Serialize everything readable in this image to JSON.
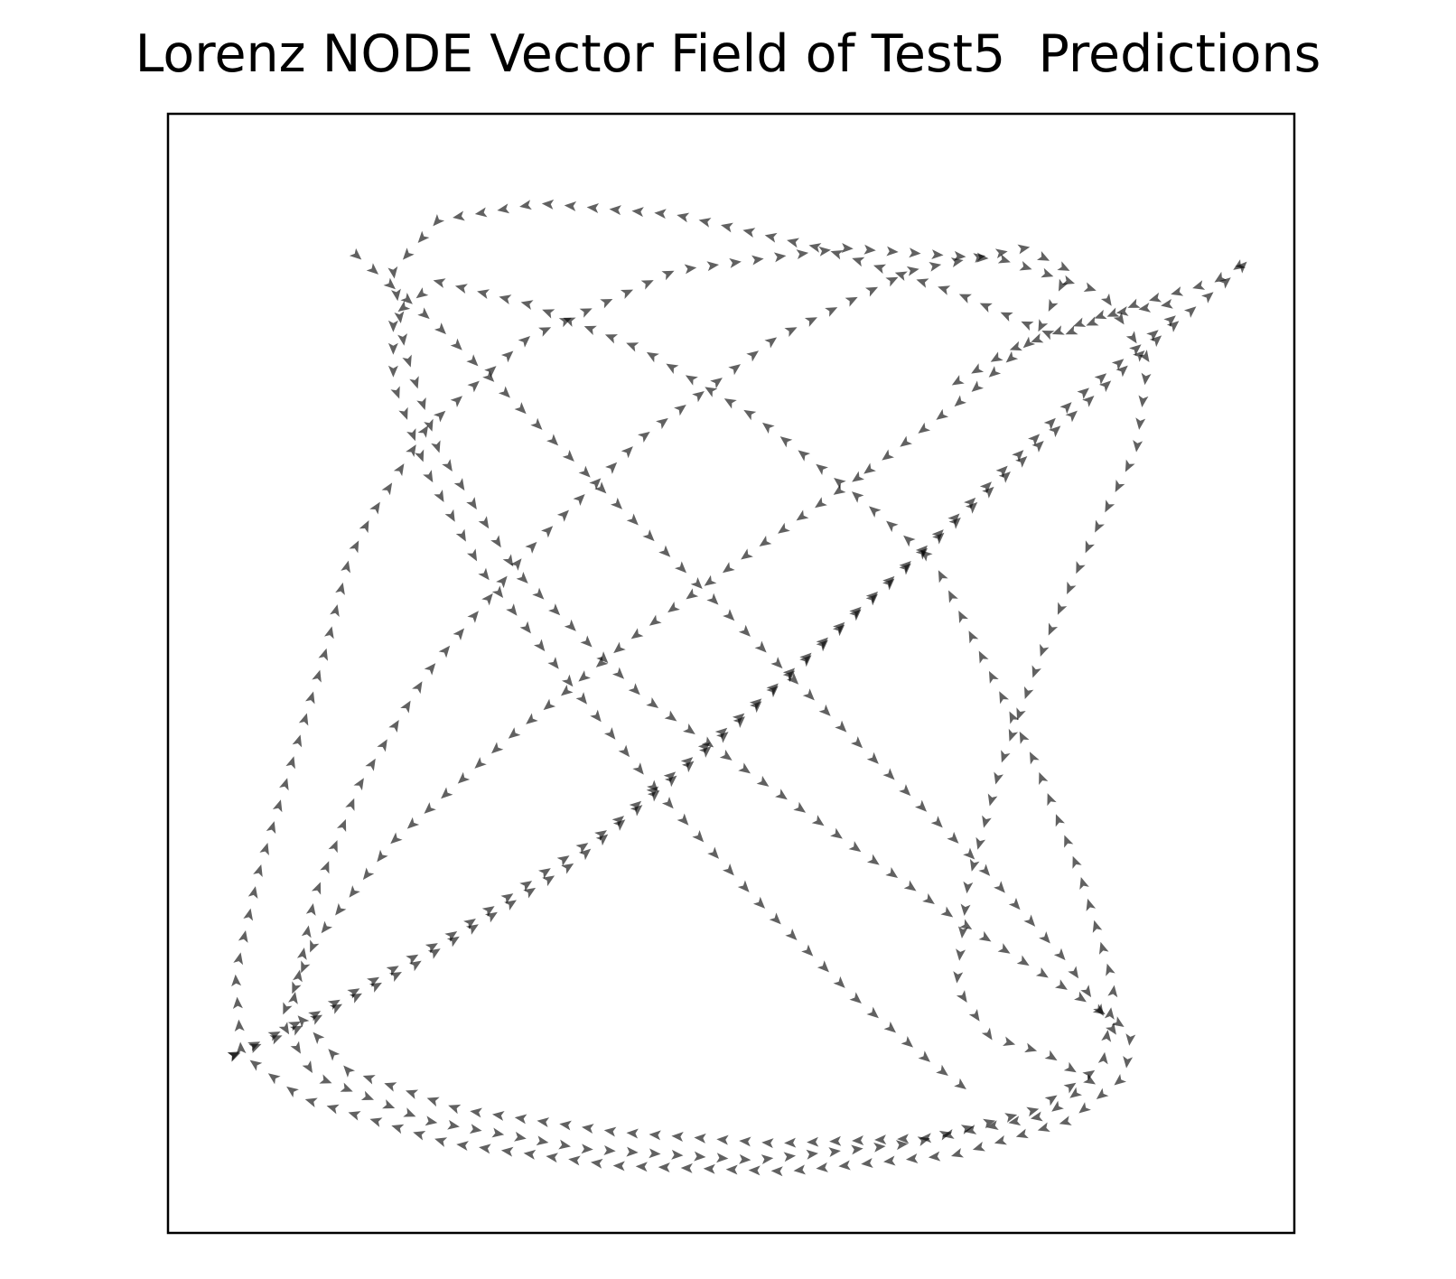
{
  "chart_data": {
    "type": "quiver",
    "title": "Lorenz NODE Vector Field of Test5  Predictions",
    "xlabel": "",
    "ylabel": "",
    "x_ticks_visible": false,
    "y_ticks_visible": false,
    "grid": false,
    "legend": "none",
    "arrow_color": "#000000",
    "arrow_opacity": 0.62,
    "xlim": [
      0,
      1
    ],
    "ylim": [
      0,
      1
    ],
    "trajectories": [
      {
        "points": [
          [
            0.05,
            0.155
          ],
          [
            0.11,
            0.18
          ],
          [
            0.22,
            0.24
          ],
          [
            0.36,
            0.33
          ],
          [
            0.5,
            0.45
          ],
          [
            0.64,
            0.58
          ],
          [
            0.78,
            0.71
          ],
          [
            0.88,
            0.8
          ],
          [
            0.945,
            0.855
          ],
          [
            0.96,
            0.87
          ],
          [
            0.93,
            0.85
          ],
          [
            0.86,
            0.83
          ],
          [
            0.79,
            0.8
          ]
        ]
      },
      {
        "points": [
          [
            0.79,
            0.8
          ],
          [
            0.7,
            0.84
          ],
          [
            0.58,
            0.88
          ],
          [
            0.45,
            0.91
          ],
          [
            0.33,
            0.92
          ],
          [
            0.24,
            0.905
          ],
          [
            0.2,
            0.86
          ],
          [
            0.21,
            0.79
          ],
          [
            0.24,
            0.7
          ],
          [
            0.31,
            0.59
          ],
          [
            0.42,
            0.48
          ],
          [
            0.56,
            0.38
          ],
          [
            0.7,
            0.28
          ],
          [
            0.81,
            0.21
          ],
          [
            0.855,
            0.18
          ],
          [
            0.85,
            0.14
          ],
          [
            0.8,
            0.1
          ],
          [
            0.7,
            0.07
          ],
          [
            0.55,
            0.055
          ],
          [
            0.4,
            0.06
          ],
          [
            0.25,
            0.08
          ],
          [
            0.12,
            0.12
          ],
          [
            0.065,
            0.16
          ],
          [
            0.06,
            0.23
          ],
          [
            0.08,
            0.32
          ],
          [
            0.11,
            0.42
          ],
          [
            0.14,
            0.52
          ],
          [
            0.16,
            0.6
          ],
          [
            0.18,
            0.64
          ]
        ]
      },
      {
        "points": [
          [
            0.05,
            0.155
          ],
          [
            0.13,
            0.195
          ],
          [
            0.25,
            0.265
          ],
          [
            0.39,
            0.36
          ],
          [
            0.53,
            0.48
          ],
          [
            0.67,
            0.61
          ],
          [
            0.8,
            0.74
          ],
          [
            0.895,
            0.82
          ],
          [
            0.89,
            0.83
          ],
          [
            0.83,
            0.82
          ],
          [
            0.75,
            0.79
          ],
          [
            0.7,
            0.76
          ]
        ]
      },
      {
        "points": [
          [
            0.18,
            0.64
          ],
          [
            0.23,
            0.72
          ],
          [
            0.32,
            0.8
          ],
          [
            0.45,
            0.86
          ],
          [
            0.6,
            0.88
          ],
          [
            0.74,
            0.87
          ],
          [
            0.83,
            0.84
          ],
          [
            0.87,
            0.78
          ],
          [
            0.86,
            0.7
          ],
          [
            0.82,
            0.62
          ],
          [
            0.78,
            0.53
          ],
          [
            0.74,
            0.42
          ],
          [
            0.71,
            0.31
          ],
          [
            0.7,
            0.22
          ],
          [
            0.73,
            0.175
          ],
          [
            0.78,
            0.16
          ],
          [
            0.82,
            0.135
          ],
          [
            0.78,
            0.105
          ],
          [
            0.68,
            0.085
          ],
          [
            0.54,
            0.08
          ],
          [
            0.4,
            0.09
          ],
          [
            0.26,
            0.11
          ],
          [
            0.16,
            0.145
          ],
          [
            0.11,
            0.2
          ]
        ]
      },
      {
        "points": [
          [
            0.11,
            0.2
          ],
          [
            0.13,
            0.3
          ],
          [
            0.17,
            0.4
          ],
          [
            0.23,
            0.5
          ],
          [
            0.32,
            0.61
          ],
          [
            0.42,
            0.71
          ],
          [
            0.54,
            0.8
          ],
          [
            0.66,
            0.86
          ],
          [
            0.76,
            0.88
          ],
          [
            0.8,
            0.86
          ],
          [
            0.77,
            0.8
          ],
          [
            0.7,
            0.74
          ],
          [
            0.62,
            0.68
          ]
        ]
      },
      {
        "points": [
          [
            0.62,
            0.68
          ],
          [
            0.52,
            0.61
          ],
          [
            0.41,
            0.53
          ],
          [
            0.3,
            0.44
          ],
          [
            0.2,
            0.35
          ],
          [
            0.13,
            0.26
          ],
          [
            0.1,
            0.19
          ],
          [
            0.13,
            0.14
          ],
          [
            0.23,
            0.1
          ],
          [
            0.37,
            0.075
          ],
          [
            0.52,
            0.065
          ],
          [
            0.66,
            0.08
          ],
          [
            0.77,
            0.11
          ],
          [
            0.83,
            0.15
          ],
          [
            0.84,
            0.22
          ],
          [
            0.81,
            0.32
          ],
          [
            0.77,
            0.42
          ],
          [
            0.72,
            0.52
          ],
          [
            0.68,
            0.6
          ]
        ]
      },
      {
        "points": [
          [
            0.68,
            0.6
          ],
          [
            0.61,
            0.66
          ],
          [
            0.52,
            0.73
          ],
          [
            0.42,
            0.79
          ],
          [
            0.32,
            0.83
          ],
          [
            0.24,
            0.85
          ],
          [
            0.2,
            0.82
          ],
          [
            0.2,
            0.76
          ],
          [
            0.23,
            0.68
          ],
          [
            0.28,
            0.59
          ],
          [
            0.35,
            0.5
          ],
          [
            0.43,
            0.4
          ],
          [
            0.52,
            0.3
          ],
          [
            0.61,
            0.21
          ],
          [
            0.68,
            0.15
          ],
          [
            0.72,
            0.12
          ]
        ]
      },
      {
        "points": [
          [
            0.16,
            0.88
          ],
          [
            0.24,
            0.81
          ],
          [
            0.33,
            0.72
          ],
          [
            0.43,
            0.62
          ],
          [
            0.53,
            0.52
          ],
          [
            0.63,
            0.42
          ],
          [
            0.72,
            0.33
          ],
          [
            0.8,
            0.24
          ],
          [
            0.84,
            0.18
          ]
        ]
      }
    ]
  }
}
